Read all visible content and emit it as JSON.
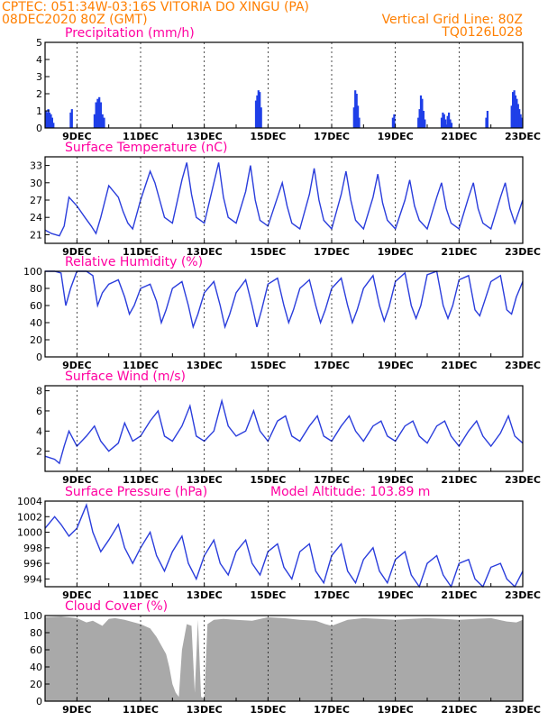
{
  "header": {
    "line1_left": "CPTEC:   051:34W-03:16S   VITORIA DO XINGU (PA)",
    "line2_left": "08DEC2020 80Z (GMT)",
    "line2_right": "Vertical Grid Line: 80Z",
    "line3_right": "TQ0126L028"
  },
  "colors": {
    "header": "#ff7f00",
    "title": "#ff00a0",
    "series": "#2a3ddc",
    "cloud": "#a9a9a9",
    "precip": "#1f3fe8"
  },
  "chart_data": [
    {
      "id": "precip",
      "type": "bar",
      "title": "Precipitation (mm/h)",
      "ylim": [
        0,
        5
      ],
      "yticks": [
        0,
        1,
        2,
        3,
        4,
        5
      ],
      "xlim": [
        8.0,
        23.0
      ],
      "xticks": [
        "9DEC",
        "11DEC",
        "13DEC",
        "15DEC",
        "17DEC",
        "19DEC",
        "21DEC",
        "23DEC"
      ],
      "grid": true,
      "x": [
        8.02,
        8.06,
        8.1,
        8.14,
        8.18,
        8.22,
        8.26,
        8.8,
        8.84,
        9.55,
        9.6,
        9.65,
        9.7,
        9.75,
        9.8,
        9.85,
        14.62,
        14.66,
        14.7,
        14.74,
        14.78,
        17.7,
        17.74,
        17.78,
        17.82,
        17.86,
        18.92,
        18.96,
        19.72,
        19.76,
        19.8,
        19.84,
        19.88,
        19.92,
        20.45,
        20.49,
        20.53,
        20.57,
        20.6,
        20.64,
        20.68,
        20.72,
        20.76,
        21.85,
        21.89,
        22.65,
        22.69,
        22.73,
        22.77,
        22.81,
        22.85,
        22.89,
        22.93,
        22.97
      ],
      "values": [
        1.0,
        0.9,
        1.1,
        0.9,
        0.8,
        0.6,
        0.3,
        0.9,
        1.1,
        0.8,
        1.5,
        1.7,
        1.8,
        1.5,
        0.8,
        0.6,
        1.6,
        1.9,
        2.2,
        2.1,
        1.2,
        1.2,
        2.2,
        2.0,
        1.3,
        0.6,
        0.6,
        0.8,
        0.6,
        1.1,
        1.9,
        1.7,
        1.0,
        0.5,
        0.6,
        0.9,
        0.8,
        0.5,
        0.2,
        0.7,
        0.9,
        0.5,
        0.3,
        0.6,
        1.0,
        1.3,
        2.1,
        2.2,
        1.9,
        1.7,
        1.4,
        1.1,
        0.8,
        0.6
      ]
    },
    {
      "id": "temp",
      "type": "line",
      "title": "Surface Temperature (nC)",
      "ylim": [
        19.5,
        34.5
      ],
      "yticks": [
        21,
        24,
        27,
        30,
        33
      ],
      "xlim": [
        8.0,
        23.0
      ],
      "xticks": [
        "9DEC",
        "11DEC",
        "13DEC",
        "15DEC",
        "17DEC",
        "19DEC",
        "21DEC",
        "23DEC"
      ],
      "grid": true,
      "x": [
        8.0,
        8.2,
        8.45,
        8.6,
        8.75,
        9.0,
        9.25,
        9.45,
        9.6,
        9.75,
        10.0,
        10.3,
        10.45,
        10.6,
        10.75,
        11.0,
        11.3,
        11.45,
        11.6,
        11.75,
        12.0,
        12.3,
        12.45,
        12.6,
        12.75,
        13.0,
        13.3,
        13.45,
        13.6,
        13.75,
        14.0,
        14.3,
        14.45,
        14.6,
        14.75,
        15.0,
        15.3,
        15.45,
        15.6,
        15.75,
        16.0,
        16.3,
        16.45,
        16.6,
        16.75,
        17.0,
        17.3,
        17.45,
        17.6,
        17.75,
        18.0,
        18.3,
        18.45,
        18.6,
        18.75,
        19.0,
        19.3,
        19.45,
        19.6,
        19.75,
        20.0,
        20.3,
        20.45,
        20.6,
        20.75,
        21.0,
        21.3,
        21.45,
        21.6,
        21.75,
        22.0,
        22.3,
        22.45,
        22.6,
        22.75,
        23.0
      ],
      "values": [
        21.8,
        21.2,
        20.8,
        22.5,
        27.5,
        26.0,
        24.0,
        22.5,
        21.2,
        24.0,
        29.5,
        27.5,
        25.0,
        23.0,
        22.0,
        27.0,
        32.0,
        30.0,
        27.0,
        24.0,
        23.0,
        30.5,
        33.5,
        28.0,
        24.0,
        23.0,
        30.0,
        33.5,
        27.5,
        24.0,
        23.0,
        28.5,
        33.0,
        27.0,
        23.5,
        22.5,
        27.5,
        30.0,
        26.0,
        23.0,
        22.0,
        28.0,
        32.5,
        27.0,
        23.5,
        22.0,
        28.0,
        32.0,
        27.0,
        23.5,
        22.0,
        27.5,
        31.5,
        26.5,
        23.5,
        22.0,
        27.0,
        30.5,
        26.0,
        23.5,
        22.0,
        27.5,
        30.0,
        25.5,
        23.0,
        22.0,
        27.5,
        30.0,
        25.5,
        23.0,
        22.0,
        27.5,
        30.0,
        25.5,
        23.0,
        27.0
      ]
    },
    {
      "id": "rh",
      "type": "line",
      "title": "Relative Humidity (%)",
      "ylim": [
        0,
        100
      ],
      "yticks": [
        0,
        20,
        40,
        60,
        80,
        100
      ],
      "xlim": [
        8.0,
        23.0
      ],
      "xticks": [
        "9DEC",
        "11DEC",
        "13DEC",
        "15DEC",
        "17DEC",
        "19DEC",
        "21DEC",
        "23DEC"
      ],
      "grid": true,
      "x": [
        8.0,
        8.3,
        8.5,
        8.65,
        8.8,
        9.0,
        9.3,
        9.5,
        9.65,
        9.8,
        10.0,
        10.3,
        10.5,
        10.65,
        10.8,
        11.0,
        11.3,
        11.5,
        11.65,
        11.8,
        12.0,
        12.3,
        12.5,
        12.65,
        12.8,
        13.0,
        13.3,
        13.5,
        13.65,
        13.8,
        14.0,
        14.3,
        14.5,
        14.65,
        14.8,
        15.0,
        15.3,
        15.5,
        15.65,
        15.8,
        16.0,
        16.3,
        16.5,
        16.65,
        16.8,
        17.0,
        17.3,
        17.5,
        17.65,
        17.8,
        18.0,
        18.3,
        18.5,
        18.65,
        18.8,
        19.0,
        19.3,
        19.5,
        19.65,
        19.8,
        20.0,
        20.3,
        20.5,
        20.65,
        20.8,
        21.0,
        21.3,
        21.5,
        21.65,
        21.8,
        22.0,
        22.3,
        22.5,
        22.65,
        22.8,
        23.0
      ],
      "values": [
        100,
        100,
        98,
        60,
        80,
        100,
        100,
        95,
        60,
        75,
        85,
        90,
        70,
        50,
        60,
        80,
        85,
        65,
        40,
        55,
        80,
        88,
        60,
        35,
        50,
        75,
        88,
        60,
        35,
        50,
        75,
        90,
        60,
        35,
        55,
        85,
        92,
        60,
        40,
        55,
        80,
        90,
        60,
        40,
        55,
        80,
        92,
        60,
        40,
        55,
        80,
        95,
        60,
        42,
        58,
        88,
        98,
        60,
        45,
        60,
        96,
        100,
        60,
        45,
        60,
        90,
        95,
        55,
        48,
        65,
        88,
        95,
        55,
        50,
        70,
        88
      ]
    },
    {
      "id": "wind",
      "type": "line",
      "title": "Surface Wind (m/s)",
      "ylim": [
        0,
        8.5
      ],
      "yticks": [
        2,
        4,
        6,
        8
      ],
      "xlim": [
        8.0,
        23.0
      ],
      "xticks": [
        "9DEC",
        "11DEC",
        "13DEC",
        "15DEC",
        "17DEC",
        "19DEC",
        "21DEC",
        "23DEC"
      ],
      "grid": true,
      "x": [
        8.0,
        8.3,
        8.45,
        8.6,
        8.75,
        9.0,
        9.3,
        9.55,
        9.75,
        10.0,
        10.3,
        10.5,
        10.75,
        11.0,
        11.3,
        11.55,
        11.75,
        12.0,
        12.3,
        12.55,
        12.75,
        13.0,
        13.3,
        13.55,
        13.75,
        14.0,
        14.3,
        14.55,
        14.75,
        15.0,
        15.3,
        15.55,
        15.75,
        16.0,
        16.3,
        16.55,
        16.75,
        17.0,
        17.3,
        17.55,
        17.75,
        18.0,
        18.3,
        18.55,
        18.75,
        19.0,
        19.3,
        19.55,
        19.75,
        20.0,
        20.3,
        20.55,
        20.75,
        21.0,
        21.3,
        21.55,
        21.75,
        22.0,
        22.3,
        22.55,
        22.75,
        23.0
      ],
      "values": [
        1.5,
        1.2,
        0.8,
        2.5,
        4.0,
        2.5,
        3.5,
        4.5,
        3.0,
        2.0,
        2.8,
        4.8,
        3.0,
        3.5,
        5.0,
        6.0,
        3.5,
        3.0,
        4.5,
        6.5,
        3.5,
        3.0,
        4.0,
        7.0,
        4.5,
        3.5,
        4.0,
        6.0,
        4.0,
        3.0,
        5.0,
        5.5,
        3.5,
        3.0,
        4.5,
        5.5,
        3.5,
        3.0,
        4.5,
        5.5,
        4.0,
        3.0,
        4.5,
        5.0,
        3.5,
        3.0,
        4.5,
        5.0,
        3.5,
        2.8,
        4.5,
        5.0,
        3.5,
        2.5,
        4.0,
        5.0,
        3.5,
        2.5,
        3.8,
        5.5,
        3.5,
        2.8
      ]
    },
    {
      "id": "pressure",
      "type": "line",
      "title": "Surface Pressure (hPa)",
      "annotation": "Model Altitude: 103.89 m",
      "ylim": [
        993,
        1004
      ],
      "yticks": [
        994,
        996,
        998,
        1000,
        1002,
        1004
      ],
      "xlim": [
        8.0,
        23.0
      ],
      "xticks": [
        "9DEC",
        "11DEC",
        "13DEC",
        "15DEC",
        "17DEC",
        "19DEC",
        "21DEC",
        "23DEC"
      ],
      "grid": true,
      "x": [
        8.0,
        8.3,
        8.5,
        8.75,
        9.0,
        9.3,
        9.5,
        9.75,
        10.0,
        10.3,
        10.5,
        10.75,
        11.0,
        11.3,
        11.5,
        11.75,
        12.0,
        12.3,
        12.5,
        12.75,
        13.0,
        13.3,
        13.5,
        13.75,
        14.0,
        14.3,
        14.5,
        14.75,
        15.0,
        15.3,
        15.5,
        15.75,
        16.0,
        16.3,
        16.5,
        16.75,
        17.0,
        17.3,
        17.5,
        17.75,
        18.0,
        18.3,
        18.5,
        18.75,
        19.0,
        19.3,
        19.5,
        19.75,
        20.0,
        20.3,
        20.5,
        20.75,
        21.0,
        21.3,
        21.5,
        21.75,
        22.0,
        22.3,
        22.5,
        22.75,
        23.0
      ],
      "values": [
        1000.5,
        1002.0,
        1001.0,
        999.5,
        1000.5,
        1003.5,
        1000.0,
        997.5,
        999.0,
        1001.0,
        998.0,
        996.0,
        998.0,
        1000.0,
        997.0,
        995.0,
        997.5,
        999.5,
        996.0,
        994.0,
        997.0,
        999.0,
        996.0,
        994.5,
        997.5,
        999.0,
        996.0,
        994.5,
        997.5,
        998.5,
        995.5,
        994.0,
        997.5,
        998.5,
        995.0,
        993.5,
        997.0,
        998.5,
        995.0,
        993.5,
        996.5,
        998.0,
        995.0,
        993.5,
        996.5,
        997.5,
        994.5,
        993.0,
        996.0,
        997.0,
        994.5,
        993.0,
        996.0,
        996.5,
        994.0,
        993.0,
        995.5,
        996.0,
        994.0,
        993.0,
        995.0
      ]
    },
    {
      "id": "cloud",
      "type": "area",
      "title": "Cloud Cover (%)",
      "ylim": [
        0,
        100
      ],
      "yticks": [
        0,
        20,
        40,
        60,
        80,
        100
      ],
      "xlim": [
        8.0,
        23.0
      ],
      "xticks": [
        "9DEC",
        "11DEC",
        "13DEC",
        "15DEC",
        "17DEC",
        "19DEC",
        "21DEC",
        "23DEC"
      ],
      "grid": true,
      "x": [
        8.0,
        8.5,
        9.0,
        9.3,
        9.5,
        9.8,
        10.0,
        10.2,
        10.5,
        10.8,
        11.0,
        11.3,
        11.5,
        11.8,
        11.9,
        12.0,
        12.1,
        12.2,
        12.3,
        12.45,
        12.6,
        12.7,
        12.8,
        12.9,
        13.0,
        13.1,
        13.3,
        13.6,
        14.0,
        14.5,
        15.0,
        15.5,
        16.0,
        16.5,
        16.8,
        17.0,
        17.5,
        18.0,
        18.5,
        19.0,
        19.5,
        20.0,
        20.5,
        21.0,
        21.5,
        22.0,
        22.5,
        22.8,
        23.0
      ],
      "values": [
        98,
        99,
        97,
        92,
        94,
        88,
        96,
        97,
        95,
        92,
        90,
        85,
        75,
        55,
        40,
        20,
        10,
        5,
        60,
        90,
        88,
        10,
        95,
        5,
        3,
        90,
        95,
        96,
        95,
        94,
        98,
        97,
        95,
        94,
        90,
        88,
        95,
        97,
        96,
        95,
        96,
        97,
        96,
        95,
        96,
        97,
        93,
        92,
        95
      ]
    }
  ]
}
